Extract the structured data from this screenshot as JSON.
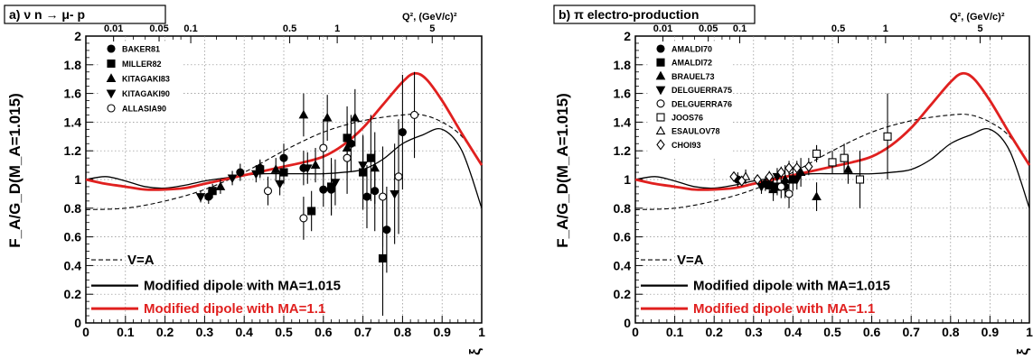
{
  "chart_data": [
    {
      "type": "scatter",
      "title": "a) ν n → μ- p",
      "xlabel": "ξ",
      "ylabel": "F_A/G_D(M_A=1.015)",
      "xlim": [
        0,
        1
      ],
      "ylim": [
        0,
        2
      ],
      "x_ticks": [
        "0",
        "0.1",
        "0.2",
        "0.3",
        "0.4",
        "0.5",
        "0.6",
        "0.7",
        "0.8",
        "0.9",
        "1"
      ],
      "y_ticks": [
        "0",
        "0.2",
        "0.4",
        "0.6",
        "0.8",
        "1",
        "1.2",
        "1.4",
        "1.6",
        "1.8",
        "2"
      ],
      "top_axis": {
        "label": "Q², (GeV/c)²",
        "ticks": [
          {
            "label": "0.01",
            "xi": 0.07
          },
          {
            "label": "0.05",
            "xi": 0.185
          },
          {
            "label": "0.1",
            "xi": 0.265
          },
          {
            "label": "0.5",
            "xi": 0.515
          },
          {
            "label": "1",
            "xi": 0.635
          },
          {
            "label": "5",
            "xi": 0.875
          }
        ]
      },
      "grid": true,
      "series": [
        {
          "name": "BAKER81",
          "marker": "circle-filled",
          "points": [
            [
              0.31,
              0.88,
              0.05
            ],
            [
              0.39,
              1.05,
              0.06
            ],
            [
              0.44,
              1.08,
              0.06
            ],
            [
              0.5,
              1.15,
              0.1
            ],
            [
              0.55,
              1.08,
              0.12
            ],
            [
              0.6,
              0.93,
              0.12
            ],
            [
              0.62,
              0.93,
              0.18
            ],
            [
              0.67,
              1.25,
              0.2
            ],
            [
              0.71,
              0.88,
              0.22
            ],
            [
              0.73,
              0.92,
              0.28
            ],
            [
              0.76,
              0.65,
              0.3
            ],
            [
              0.8,
              1.33,
              0.4
            ]
          ]
        },
        {
          "name": "MILLER82",
          "marker": "square-filled",
          "points": [
            [
              0.32,
              0.92,
              0.05
            ],
            [
              0.44,
              1.07,
              0.06
            ],
            [
              0.5,
              1.05,
              0.08
            ],
            [
              0.57,
              0.78,
              0.14
            ],
            [
              0.62,
              0.95,
              0.2
            ],
            [
              0.66,
              1.29,
              0.22
            ],
            [
              0.7,
              1.05,
              0.26
            ],
            [
              0.72,
              1.15,
              0.3
            ],
            [
              0.75,
              0.45,
              0.4
            ]
          ]
        },
        {
          "name": "KITAGAKI83",
          "marker": "triangle-up-filled",
          "points": [
            [
              0.34,
              0.95,
              0.05
            ],
            [
              0.48,
              1.07,
              0.08
            ],
            [
              0.55,
              1.45,
              0.15
            ],
            [
              0.58,
              1.1,
              0.12
            ],
            [
              0.61,
              1.43,
              0.16
            ],
            [
              0.66,
              1.22,
              0.18
            ],
            [
              0.68,
              1.43,
              0.2
            ],
            [
              0.73,
              1.08,
              0.25
            ]
          ]
        },
        {
          "name": "KITAGAKI90",
          "marker": "triangle-down-filled",
          "points": [
            [
              0.29,
              0.88,
              0.04
            ],
            [
              0.37,
              1.01,
              0.05
            ],
            [
              0.43,
              1.04,
              0.06
            ],
            [
              0.49,
              0.97,
              0.08
            ],
            [
              0.56,
              1.08,
              0.11
            ],
            [
              0.63,
              0.98,
              0.16
            ],
            [
              0.7,
              1.1,
              0.2
            ],
            [
              0.78,
              0.9,
              0.35
            ]
          ]
        },
        {
          "name": "ALLASIA90",
          "marker": "circle-open",
          "points": [
            [
              0.46,
              0.92,
              0.1
            ],
            [
              0.55,
              0.73,
              0.15
            ],
            [
              0.6,
              1.22,
              0.2
            ],
            [
              0.66,
              1.15,
              0.25
            ],
            [
              0.75,
              0.88,
              0.35
            ],
            [
              0.79,
              1.02,
              0.4
            ],
            [
              0.83,
              1.45,
              0.3
            ]
          ]
        }
      ],
      "curves": [
        {
          "name": "V=A",
          "style": "dashed",
          "color": "#000000",
          "points": [
            [
              0,
              0.79
            ],
            [
              0.1,
              0.8
            ],
            [
              0.2,
              0.85
            ],
            [
              0.3,
              0.93
            ],
            [
              0.4,
              1.05
            ],
            [
              0.5,
              1.2
            ],
            [
              0.6,
              1.33
            ],
            [
              0.7,
              1.41
            ],
            [
              0.8,
              1.45
            ],
            [
              0.85,
              1.45
            ],
            [
              0.9,
              1.4
            ],
            [
              0.95,
              1.3
            ],
            [
              1,
              1.1
            ]
          ]
        },
        {
          "name": "Modified dipole with MA=1.015",
          "style": "solid-thin",
          "color": "#000000",
          "points": [
            [
              0,
              1.0
            ],
            [
              0.05,
              1.02
            ],
            [
              0.1,
              0.99
            ],
            [
              0.15,
              0.95
            ],
            [
              0.2,
              0.94
            ],
            [
              0.25,
              0.96
            ],
            [
              0.3,
              0.99
            ],
            [
              0.35,
              1.01
            ],
            [
              0.4,
              1.03
            ],
            [
              0.45,
              1.04
            ],
            [
              0.5,
              1.04
            ],
            [
              0.55,
              1.04
            ],
            [
              0.6,
              1.04
            ],
            [
              0.65,
              1.05
            ],
            [
              0.7,
              1.07
            ],
            [
              0.75,
              1.14
            ],
            [
              0.8,
              1.25
            ],
            [
              0.85,
              1.31
            ],
            [
              0.9,
              1.35
            ],
            [
              0.95,
              1.2
            ],
            [
              1,
              0.8
            ]
          ]
        },
        {
          "name": "Modified dipole with MA=1.1",
          "style": "solid-thick",
          "color": "#e0201f",
          "points": [
            [
              0,
              1.0
            ],
            [
              0.05,
              0.97
            ],
            [
              0.1,
              0.95
            ],
            [
              0.15,
              0.93
            ],
            [
              0.2,
              0.93
            ],
            [
              0.25,
              0.94
            ],
            [
              0.3,
              0.97
            ],
            [
              0.35,
              1.0
            ],
            [
              0.4,
              1.03
            ],
            [
              0.45,
              1.06
            ],
            [
              0.5,
              1.09
            ],
            [
              0.55,
              1.12
            ],
            [
              0.6,
              1.16
            ],
            [
              0.65,
              1.24
            ],
            [
              0.7,
              1.36
            ],
            [
              0.75,
              1.52
            ],
            [
              0.8,
              1.68
            ],
            [
              0.83,
              1.74
            ],
            [
              0.86,
              1.7
            ],
            [
              0.9,
              1.55
            ],
            [
              0.95,
              1.32
            ],
            [
              1,
              1.1
            ]
          ]
        }
      ],
      "legend_markers": [
        "BAKER81",
        "MILLER82",
        "KITAGAKI83",
        "KITAGAKI90",
        "ALLASIA90"
      ],
      "legend_curves": [
        "V=A",
        "Modified dipole with MA=1.015",
        "Modified dipole with MA=1.1"
      ]
    },
    {
      "type": "scatter",
      "title": "b) π electro-production",
      "xlabel": "ξ",
      "ylabel": "F_A/G_D(M_A=1.015)",
      "xlim": [
        0,
        1
      ],
      "ylim": [
        0,
        2
      ],
      "x_ticks": [
        "0",
        "0.1",
        "0.2",
        "0.3",
        "0.4",
        "0.5",
        "0.6",
        "0.7",
        "0.8",
        "0.9",
        "1"
      ],
      "y_ticks": [
        "0",
        "0.2",
        "0.4",
        "0.6",
        "0.8",
        "1",
        "1.2",
        "1.4",
        "1.6",
        "1.8",
        "2"
      ],
      "top_axis": {
        "label": "Q², (GeV/c)²",
        "ticks": [
          {
            "label": "0.01",
            "xi": 0.07
          },
          {
            "label": "0.05",
            "xi": 0.185
          },
          {
            "label": "0.1",
            "xi": 0.265
          },
          {
            "label": "0.5",
            "xi": 0.515
          },
          {
            "label": "1",
            "xi": 0.635
          },
          {
            "label": "5",
            "xi": 0.875
          }
        ]
      },
      "grid": true,
      "series": [
        {
          "name": "AMALDI70",
          "marker": "circle-filled",
          "points": [
            [
              0.26,
              1.0,
              0.05
            ],
            [
              0.33,
              0.97,
              0.05
            ],
            [
              0.35,
              0.95,
              0.06
            ],
            [
              0.38,
              0.95,
              0.08
            ]
          ]
        },
        {
          "name": "AMALDI72",
          "marker": "square-filled",
          "points": [
            [
              0.34,
              0.96,
              0.05
            ],
            [
              0.36,
              0.95,
              0.06
            ],
            [
              0.4,
              1.0,
              0.08
            ]
          ]
        },
        {
          "name": "BRAUEL73",
          "marker": "triangle-up-filled",
          "points": [
            [
              0.35,
              0.93,
              0.08
            ],
            [
              0.38,
              1.0,
              0.1
            ],
            [
              0.42,
              1.05,
              0.1
            ],
            [
              0.46,
              0.88,
              0.1
            ],
            [
              0.54,
              1.07,
              0.1
            ]
          ]
        },
        {
          "name": "DELGUERRA75",
          "marker": "triangle-down-filled",
          "points": [
            [
              0.32,
              0.95,
              0.05
            ],
            [
              0.36,
              1.02,
              0.06
            ],
            [
              0.41,
              1.0,
              0.07
            ]
          ]
        },
        {
          "name": "DELGUERRA76",
          "marker": "circle-open",
          "points": [
            [
              0.37,
              0.95,
              0.08
            ],
            [
              0.39,
              0.9,
              0.1
            ]
          ]
        },
        {
          "name": "JOOS76",
          "marker": "square-open",
          "points": [
            [
              0.46,
              1.18,
              0.06
            ],
            [
              0.5,
              1.12,
              0.08
            ],
            [
              0.53,
              1.15,
              0.1
            ],
            [
              0.57,
              1.0,
              0.2
            ],
            [
              0.64,
              1.3,
              0.3
            ]
          ]
        },
        {
          "name": "ESAULOV78",
          "marker": "triangle-up-open",
          "points": [
            [
              0.28,
              1.02,
              0.05
            ]
          ]
        },
        {
          "name": "CHOI93",
          "marker": "diamond-open",
          "points": [
            [
              0.25,
              1.02,
              0.03
            ],
            [
              0.27,
              0.99,
              0.03
            ],
            [
              0.31,
              1.0,
              0.03
            ],
            [
              0.34,
              1.02,
              0.04
            ],
            [
              0.37,
              1.05,
              0.04
            ],
            [
              0.39,
              1.08,
              0.05
            ],
            [
              0.41,
              1.08,
              0.05
            ],
            [
              0.44,
              1.09,
              0.06
            ]
          ]
        }
      ],
      "curves": [
        {
          "name": "V=A",
          "style": "dashed",
          "color": "#000000",
          "points": [
            [
              0,
              0.79
            ],
            [
              0.1,
              0.8
            ],
            [
              0.2,
              0.85
            ],
            [
              0.3,
              0.93
            ],
            [
              0.4,
              1.05
            ],
            [
              0.5,
              1.2
            ],
            [
              0.6,
              1.33
            ],
            [
              0.7,
              1.41
            ],
            [
              0.8,
              1.45
            ],
            [
              0.85,
              1.45
            ],
            [
              0.9,
              1.4
            ],
            [
              0.95,
              1.3
            ],
            [
              1,
              1.1
            ]
          ]
        },
        {
          "name": "Modified dipole with MA=1.015",
          "style": "solid-thin",
          "color": "#000000",
          "points": [
            [
              0,
              1.0
            ],
            [
              0.05,
              1.02
            ],
            [
              0.1,
              0.99
            ],
            [
              0.15,
              0.95
            ],
            [
              0.2,
              0.94
            ],
            [
              0.25,
              0.96
            ],
            [
              0.3,
              0.99
            ],
            [
              0.35,
              1.01
            ],
            [
              0.4,
              1.03
            ],
            [
              0.45,
              1.04
            ],
            [
              0.5,
              1.04
            ],
            [
              0.55,
              1.04
            ],
            [
              0.6,
              1.04
            ],
            [
              0.65,
              1.05
            ],
            [
              0.7,
              1.07
            ],
            [
              0.75,
              1.14
            ],
            [
              0.8,
              1.25
            ],
            [
              0.85,
              1.31
            ],
            [
              0.9,
              1.35
            ],
            [
              0.95,
              1.2
            ],
            [
              1,
              0.8
            ]
          ]
        },
        {
          "name": "Modified dipole with MA=1.1",
          "style": "solid-thick",
          "color": "#e0201f",
          "points": [
            [
              0,
              1.0
            ],
            [
              0.05,
              0.97
            ],
            [
              0.1,
              0.95
            ],
            [
              0.15,
              0.93
            ],
            [
              0.2,
              0.93
            ],
            [
              0.25,
              0.94
            ],
            [
              0.3,
              0.97
            ],
            [
              0.35,
              1.0
            ],
            [
              0.4,
              1.03
            ],
            [
              0.45,
              1.06
            ],
            [
              0.5,
              1.09
            ],
            [
              0.55,
              1.12
            ],
            [
              0.6,
              1.16
            ],
            [
              0.65,
              1.24
            ],
            [
              0.7,
              1.36
            ],
            [
              0.75,
              1.52
            ],
            [
              0.8,
              1.68
            ],
            [
              0.83,
              1.74
            ],
            [
              0.86,
              1.7
            ],
            [
              0.9,
              1.55
            ],
            [
              0.95,
              1.32
            ],
            [
              1,
              1.1
            ]
          ]
        }
      ],
      "legend_markers": [
        "AMALDI70",
        "AMALDI72",
        "BRAUEL73",
        "DELGUERRA75",
        "DELGUERRA76",
        "JOOS76",
        "ESAULOV78",
        "CHOI93"
      ],
      "legend_curves": [
        "V=A",
        "Modified dipole with MA=1.015",
        "Modified dipole with MA=1.1"
      ]
    }
  ]
}
